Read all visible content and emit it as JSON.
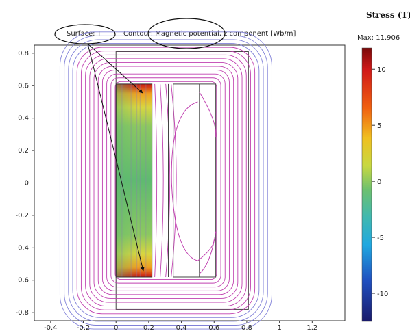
{
  "chart_data": {
    "type": "heatmap",
    "title_surface": "Surface: T",
    "title_contour": "Contour: Magnetic potential, z component [Wb/m]",
    "xlim": [
      -0.5,
      1.4
    ],
    "ylim": [
      -0.85,
      0.85
    ],
    "x_ticks": [
      "-0.4",
      "-0.2",
      "0",
      "0.2",
      "0.4",
      "0.6",
      "0.8",
      "1",
      "1.2"
    ],
    "x_tick_values": [
      -0.4,
      -0.2,
      0,
      0.2,
      0.4,
      0.6,
      0.8,
      1.0,
      1.2
    ],
    "y_ticks": [
      "0.8",
      "0.6",
      "0.4",
      "0.2",
      "0",
      "-0.2",
      "-0.4",
      "-0.6",
      "-0.8"
    ],
    "y_tick_values": [
      0.8,
      0.6,
      0.4,
      0.2,
      0,
      -0.2,
      -0.4,
      -0.6,
      -0.8
    ],
    "regions": {
      "outer_box": [
        0.0,
        0.81,
        -0.78,
        0.81
      ],
      "hot_conductor": [
        0.0,
        0.22,
        -0.58,
        0.61
      ],
      "gap_line_x": 0.32,
      "inner_box": [
        0.35,
        0.61,
        -0.58,
        0.61
      ],
      "inner_divider_x": 0.51
    },
    "colorbar": {
      "title": "Stress (T)",
      "max_label": "Max: 11.906",
      "max": 11.906,
      "min": -12.5,
      "ticks": [
        "10",
        "5",
        "0",
        "-5",
        "-10"
      ],
      "tick_values": [
        10,
        5,
        0,
        -5,
        -10
      ]
    }
  }
}
